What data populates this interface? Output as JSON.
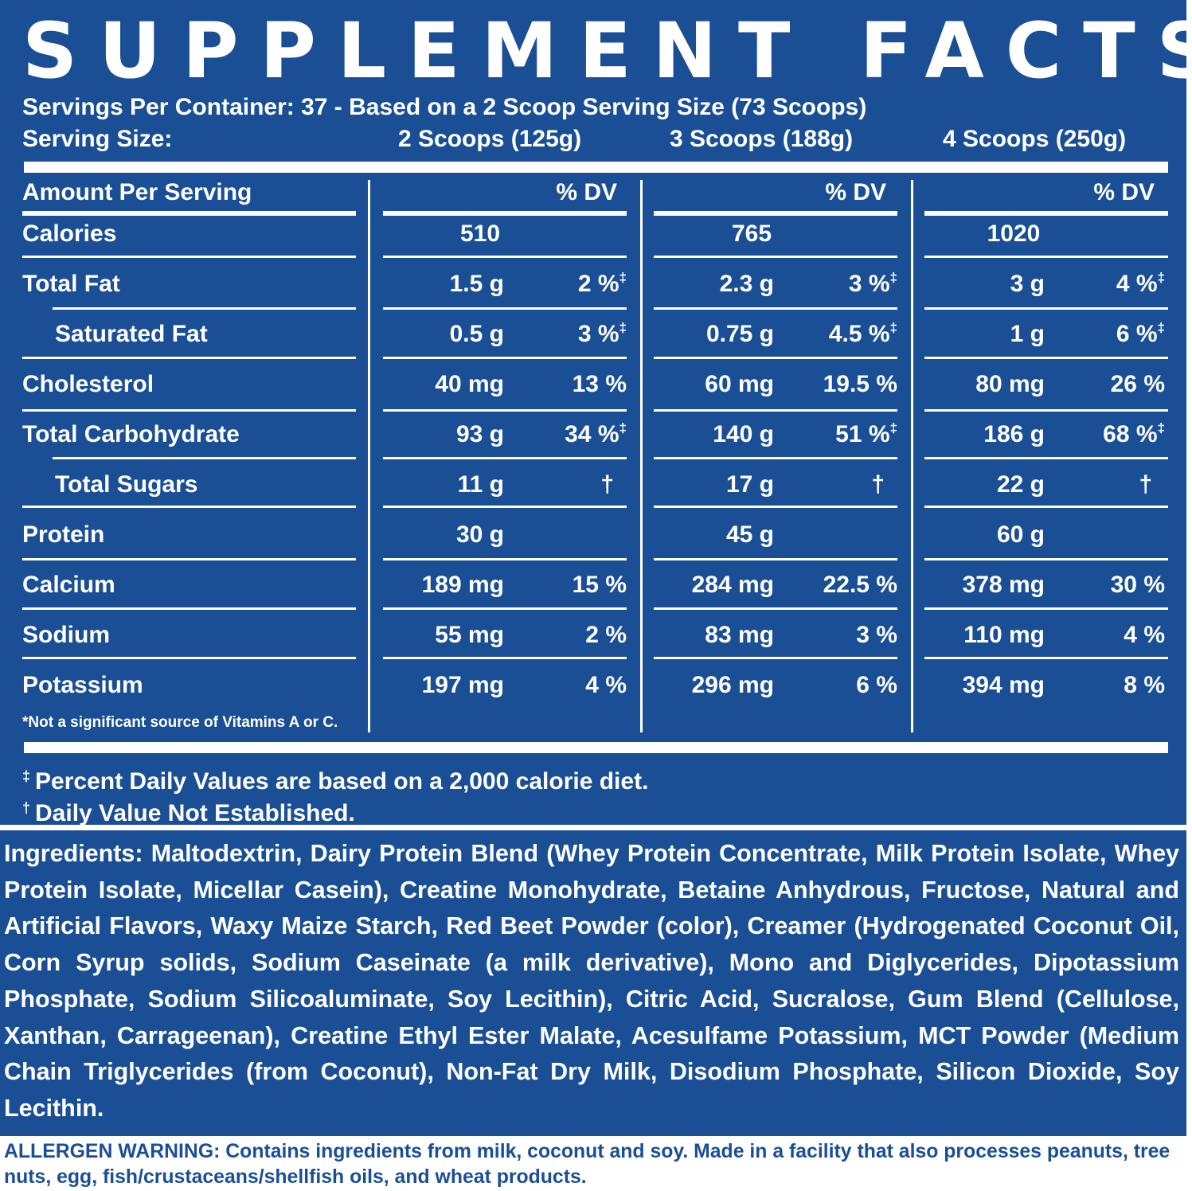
{
  "title": "SUPPLEMENT FACTS",
  "servings_line": "Servings Per Container: 37 - Based on a 2 Scoop Serving Size (73 Scoops)",
  "serving_size": {
    "label": "Serving Size:",
    "options": [
      "2 Scoops (125g)",
      "3 Scoops (188g)",
      "4 Scoops (250g)"
    ]
  },
  "table": {
    "amount_header": "Amount Per Serving",
    "dv_header": "% DV",
    "rows": [
      {
        "name": "Calories",
        "indent": false,
        "cols": [
          {
            "amt": "510",
            "dv": "",
            "mark": ""
          },
          {
            "amt": "765",
            "dv": "",
            "mark": ""
          },
          {
            "amt": "1020",
            "dv": "",
            "mark": ""
          }
        ]
      },
      {
        "name": "Total Fat",
        "indent": false,
        "cols": [
          {
            "amt": "1.5 g",
            "dv": "2 %",
            "mark": "‡"
          },
          {
            "amt": "2.3 g",
            "dv": "3 %",
            "mark": "‡"
          },
          {
            "amt": "3 g",
            "dv": "4 %",
            "mark": "‡"
          }
        ]
      },
      {
        "name": "Saturated Fat",
        "indent": true,
        "cols": [
          {
            "amt": "0.5 g",
            "dv": "3 %",
            "mark": "‡"
          },
          {
            "amt": "0.75 g",
            "dv": "4.5 %",
            "mark": "‡"
          },
          {
            "amt": "1 g",
            "dv": "6 %",
            "mark": "‡"
          }
        ]
      },
      {
        "name": "Cholesterol",
        "indent": false,
        "cols": [
          {
            "amt": "40 mg",
            "dv": "13 %",
            "mark": ""
          },
          {
            "amt": "60 mg",
            "dv": "19.5 %",
            "mark": ""
          },
          {
            "amt": "80 mg",
            "dv": "26 %",
            "mark": ""
          }
        ]
      },
      {
        "name": "Total Carbohydrate",
        "indent": false,
        "cols": [
          {
            "amt": "93 g",
            "dv": "34 %",
            "mark": "‡"
          },
          {
            "amt": "140 g",
            "dv": "51 %",
            "mark": "‡"
          },
          {
            "amt": "186 g",
            "dv": "68 %",
            "mark": "‡"
          }
        ]
      },
      {
        "name": "Total Sugars",
        "indent": true,
        "cols": [
          {
            "amt": "11 g",
            "dv": "†",
            "mark": ""
          },
          {
            "amt": "17 g",
            "dv": "†",
            "mark": ""
          },
          {
            "amt": "22 g",
            "dv": "†",
            "mark": ""
          }
        ]
      },
      {
        "name": "Protein",
        "indent": false,
        "cols": [
          {
            "amt": "30 g",
            "dv": "",
            "mark": ""
          },
          {
            "amt": "45 g",
            "dv": "",
            "mark": ""
          },
          {
            "amt": "60 g",
            "dv": "",
            "mark": ""
          }
        ]
      },
      {
        "name": "Calcium",
        "indent": false,
        "cols": [
          {
            "amt": "189 mg",
            "dv": "15 %",
            "mark": ""
          },
          {
            "amt": "284 mg",
            "dv": "22.5 %",
            "mark": ""
          },
          {
            "amt": "378 mg",
            "dv": "30 %",
            "mark": ""
          }
        ]
      },
      {
        "name": "Sodium",
        "indent": false,
        "cols": [
          {
            "amt": "55 mg",
            "dv": "2 %",
            "mark": ""
          },
          {
            "amt": "83 mg",
            "dv": "3 %",
            "mark": ""
          },
          {
            "amt": "110 mg",
            "dv": "4 %",
            "mark": ""
          }
        ]
      },
      {
        "name": "Potassium",
        "indent": false,
        "cols": [
          {
            "amt": "197 mg",
            "dv": "4 %",
            "mark": ""
          },
          {
            "amt": "296 mg",
            "dv": "6 %",
            "mark": ""
          },
          {
            "amt": "394 mg",
            "dv": "8 %",
            "mark": ""
          }
        ]
      }
    ],
    "note": "*Not a significant source of Vitamins A or C."
  },
  "footnotes": {
    "daily_value_symbol": "‡",
    "daily_value_text": "Percent Daily Values are based on a 2,000 calorie diet.",
    "not_established_symbol": "†",
    "not_established_text": "Daily Value Not Established."
  },
  "ingredients": {
    "label": "Ingredients:",
    "text": "Maltodextrin, Dairy Protein Blend (Whey Protein Concentrate, Milk Protein Isolate, Whey Protein Isolate, Micellar Casein), Creatine Monohydrate, Betaine Anhydrous, Fructose, Natural and Artificial Flavors, Waxy Maize Starch, Red Beet Powder (color), Creamer (Hydrogenated Coconut Oil, Corn Syrup solids, Sodium Caseinate (a milk derivative), Mono and Diglycerides, Dipotassium Phosphate, Sodium Silicoaluminate, Soy Lecithin), Citric Acid, Sucralose, Gum Blend (Cellulose, Xanthan, Carrageenan), Creatine Ethyl Ester Malate, Acesulfame Potassium, MCT Powder (Medium Chain Triglycerides (from Coconut), Non-Fat Dry Milk, Disodium Phosphate, Silicon Dioxide, Soy Lecithin."
  },
  "allergen": {
    "label": "ALLERGEN WARNING:",
    "text": "Contains ingredients from milk, coconut and soy. Made in a facility that also processes peanuts, tree nuts, egg, fish/crustaceans/shellfish oils, and wheat products."
  },
  "colors": {
    "brand_blue": "#1b4f95",
    "text_on_blue": "#ffffff"
  }
}
